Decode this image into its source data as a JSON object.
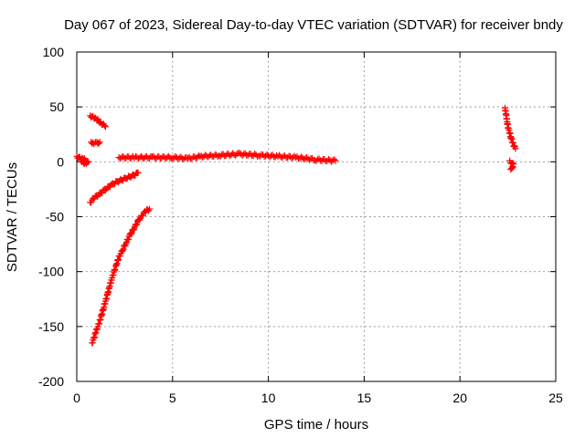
{
  "chart_data": {
    "type": "scatter",
    "title": "Day 067 of 2023, Sidereal Day-to-day VTEC variation (SDTVAR) for receiver bndy",
    "xlabel": "GPS time / hours",
    "ylabel": "SDTVAR / TECUs",
    "xlim": [
      0,
      25
    ],
    "ylim": [
      -200,
      100
    ],
    "xticks": [
      "0",
      "5",
      "10",
      "15",
      "20",
      "25"
    ],
    "yticks": [
      "100",
      "50",
      "0",
      "-50",
      "-100",
      "-150",
      "-200"
    ],
    "grid": true,
    "marker": "plus",
    "color": "#ff0000",
    "series": [
      {
        "segments": [
          [
            [
              0.0,
              5
            ],
            [
              0.2,
              3
            ],
            [
              0.4,
              2
            ],
            [
              0.6,
              1
            ],
            [
              0.5,
              -2
            ],
            [
              0.3,
              0
            ],
            [
              0.1,
              4
            ]
          ],
          [
            [
              0.7,
              42
            ],
            [
              0.9,
              40
            ],
            [
              1.1,
              38
            ],
            [
              1.3,
              35
            ],
            [
              1.5,
              32
            ]
          ],
          [
            [
              0.75,
              18
            ],
            [
              0.9,
              17
            ],
            [
              1.05,
              17
            ],
            [
              1.2,
              18
            ]
          ],
          [
            [
              0.7,
              -37
            ],
            [
              0.9,
              -33
            ],
            [
              1.2,
              -29
            ],
            [
              1.5,
              -25
            ],
            [
              1.8,
              -21
            ],
            [
              2.1,
              -18
            ],
            [
              2.4,
              -16
            ],
            [
              2.7,
              -14
            ],
            [
              3.0,
              -12
            ],
            [
              3.2,
              -10
            ]
          ],
          [
            [
              0.8,
              -165
            ],
            [
              1.0,
              -155
            ],
            [
              1.2,
              -145
            ],
            [
              1.4,
              -133
            ],
            [
              1.6,
              -121
            ],
            [
              1.8,
              -108
            ],
            [
              2.0,
              -97
            ],
            [
              2.2,
              -87
            ],
            [
              2.4,
              -80
            ],
            [
              2.6,
              -73
            ],
            [
              2.8,
              -66
            ],
            [
              3.0,
              -60
            ],
            [
              3.2,
              -54
            ],
            [
              3.4,
              -49
            ],
            [
              3.6,
              -45
            ],
            [
              3.8,
              -43
            ]
          ],
          [
            [
              2.2,
              4
            ],
            [
              3.0,
              4
            ],
            [
              4.0,
              4
            ],
            [
              5.0,
              4
            ],
            [
              5.8,
              3
            ],
            [
              6.5,
              5
            ],
            [
              7.5,
              6
            ],
            [
              8.5,
              7
            ],
            [
              9.5,
              6
            ],
            [
              10.5,
              5
            ],
            [
              11.5,
              4
            ],
            [
              12.5,
              2
            ],
            [
              13.5,
              1
            ]
          ],
          [
            [
              22.35,
              49
            ],
            [
              22.4,
              44
            ],
            [
              22.45,
              38
            ],
            [
              22.5,
              32
            ],
            [
              22.6,
              26
            ],
            [
              22.7,
              20
            ],
            [
              22.8,
              15
            ],
            [
              22.9,
              12
            ]
          ],
          [
            [
              22.6,
              1
            ],
            [
              22.7,
              -1
            ],
            [
              22.8,
              -3
            ],
            [
              22.65,
              -6
            ],
            [
              22.75,
              -5
            ]
          ]
        ]
      }
    ]
  }
}
